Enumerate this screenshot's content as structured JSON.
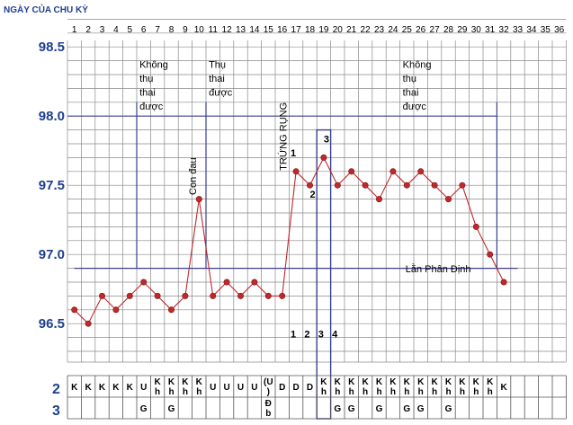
{
  "chart_data": {
    "type": "line",
    "title": "NGÀY CỦA CHU KỲ",
    "x": [
      1,
      2,
      3,
      4,
      5,
      6,
      7,
      8,
      9,
      10,
      11,
      12,
      13,
      14,
      15,
      16,
      17,
      18,
      19,
      20,
      21,
      22,
      23,
      24,
      25,
      26,
      27,
      28,
      29,
      30,
      31,
      32,
      33,
      34,
      35,
      36
    ],
    "x_ticks": [
      "1",
      "2",
      "3",
      "4",
      "5",
      "6",
      "7",
      "8",
      "9",
      "10",
      "11",
      "12",
      "13",
      "14",
      "15",
      "16",
      "17",
      "18",
      "19",
      "20",
      "21",
      "22",
      "23",
      "24",
      "25",
      "26",
      "27",
      "28",
      "29",
      "30",
      "31",
      "32",
      "33",
      "34",
      "35",
      "36"
    ],
    "y_ticks": [
      "96.5",
      "97.0",
      "97.5",
      "98.0",
      "98.5"
    ],
    "ylim": [
      96.3,
      98.7
    ],
    "grid": true,
    "series": [
      {
        "color": "#c0292b",
        "points": [
          {
            "day": 1,
            "temp": 96.6
          },
          {
            "day": 2,
            "temp": 96.5
          },
          {
            "day": 3,
            "temp": 96.7
          },
          {
            "day": 4,
            "temp": 96.6
          },
          {
            "day": 5,
            "temp": 96.7
          },
          {
            "day": 6,
            "temp": 96.8
          },
          {
            "day": 7,
            "temp": 96.7
          },
          {
            "day": 8,
            "temp": 96.6
          },
          {
            "day": 9,
            "temp": 96.7
          },
          {
            "day": 10,
            "temp": 97.4
          },
          {
            "day": 11,
            "temp": 96.7
          },
          {
            "day": 12,
            "temp": 96.8
          },
          {
            "day": 13,
            "temp": 96.7
          },
          {
            "day": 14,
            "temp": 96.8
          },
          {
            "day": 15,
            "temp": 96.7
          },
          {
            "day": 16,
            "temp": 96.7
          },
          {
            "day": 17,
            "temp": 97.6
          },
          {
            "day": 18,
            "temp": 97.5
          },
          {
            "day": 19,
            "temp": 97.7
          },
          {
            "day": 20,
            "temp": 97.5
          },
          {
            "day": 21,
            "temp": 97.6
          },
          {
            "day": 22,
            "temp": 97.5
          },
          {
            "day": 23,
            "temp": 97.4
          },
          {
            "day": 24,
            "temp": 97.6
          },
          {
            "day": 25,
            "temp": 97.5
          },
          {
            "day": 26,
            "temp": 97.6
          },
          {
            "day": 27,
            "temp": 97.5
          },
          {
            "day": 28,
            "temp": 97.4
          },
          {
            "day": 29,
            "temp": 97.5
          },
          {
            "day": 30,
            "temp": 97.2
          },
          {
            "day": 31,
            "temp": 97.0
          },
          {
            "day": 32,
            "temp": 96.8
          }
        ]
      }
    ],
    "coverline": {
      "temp": 96.9,
      "from_day": 1,
      "to_day": 33,
      "label": "Lằn Phân Định",
      "label_day": 24.9,
      "label_temp": 96.87
    },
    "vertical_lines": [
      {
        "day": 5.5,
        "from_temp": 96.9,
        "to_temp": 98.1
      },
      {
        "day": 10.5,
        "from_temp": 96.9,
        "to_temp": 98.1
      },
      {
        "day": 31.5,
        "from_temp": 96.9,
        "to_temp": 98.1
      }
    ],
    "fertile_line": {
      "from_day": 1,
      "to_day": 31.5,
      "temp": 98.0
    },
    "peak_box": {
      "from_day": 18.5,
      "to_day": 19.5,
      "from_temp": 97.9
    },
    "phase_labels": [
      {
        "lines": [
          "Không",
          "thụ",
          "thai",
          "được"
        ],
        "day": 5.7,
        "temp": 98.35
      },
      {
        "lines": [
          "Thụ",
          "thai",
          "được"
        ],
        "day": 10.7,
        "temp": 98.35
      },
      {
        "lines": [
          "Không",
          "thụ",
          "thai",
          "được"
        ],
        "day": 24.7,
        "temp": 98.35
      }
    ],
    "vertical_labels": [
      {
        "text": "Con đau",
        "day": 9.8,
        "temp": 97.7
      },
      {
        "text": "TRỨNG RỤNG",
        "day": 16.3,
        "temp": 98.1
      }
    ],
    "point_numbers": [
      {
        "text": "1",
        "day": 16.8,
        "temp": 97.71
      },
      {
        "text": "2",
        "day": 18.2,
        "temp": 97.41
      },
      {
        "text": "3",
        "day": 19.2,
        "temp": 97.81
      },
      {
        "text": "1",
        "day": 16.8,
        "temp": 96.4
      },
      {
        "text": "2",
        "day": 17.8,
        "temp": 96.4
      },
      {
        "text": "3",
        "day": 18.8,
        "temp": 96.4
      },
      {
        "text": "4",
        "day": 19.8,
        "temp": 96.4
      }
    ]
  },
  "table": {
    "row_labels": [
      "2",
      "3"
    ],
    "row2": [
      "K",
      "K",
      "K",
      "K",
      "K",
      "U",
      "K\nh",
      "K\nh",
      "K\nh",
      "K\nh",
      "U",
      "U",
      "U",
      "U",
      "(U\n)",
      "D",
      "D",
      "D",
      "K\nh",
      "K\nh",
      "K\nh",
      "K\nh",
      "K\nh",
      "K\nh",
      "K\nh",
      "K\nh",
      "K\nh",
      "K\nh",
      "K\nh",
      "K\nh",
      "K\nh",
      "K",
      "",
      "",
      "",
      ""
    ],
    "row3": [
      "",
      "",
      "",
      "",
      "",
      "G",
      "",
      "G",
      "",
      "",
      "",
      "",
      "",
      "",
      "Đ\nb",
      "",
      "",
      "",
      "",
      "G",
      "G",
      "",
      "G",
      "",
      "G",
      "G",
      "",
      "G",
      "",
      "",
      "",
      "",
      "",
      "",
      "",
      ""
    ]
  }
}
